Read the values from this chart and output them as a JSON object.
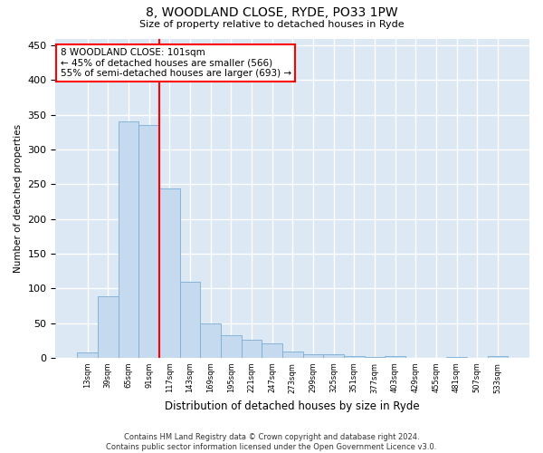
{
  "title1": "8, WOODLAND CLOSE, RYDE, PO33 1PW",
  "title2": "Size of property relative to detached houses in Ryde",
  "xlabel": "Distribution of detached houses by size in Ryde",
  "ylabel": "Number of detached properties",
  "categories": [
    "13sqm",
    "39sqm",
    "65sqm",
    "91sqm",
    "117sqm",
    "143sqm",
    "169sqm",
    "195sqm",
    "221sqm",
    "247sqm",
    "273sqm",
    "299sqm",
    "325sqm",
    "351sqm",
    "377sqm",
    "403sqm",
    "429sqm",
    "455sqm",
    "481sqm",
    "507sqm",
    "533sqm"
  ],
  "values": [
    7,
    88,
    340,
    335,
    244,
    110,
    49,
    32,
    26,
    20,
    9,
    5,
    5,
    3,
    1,
    3,
    0,
    0,
    1,
    0,
    3
  ],
  "bar_color": "#c5d9ef",
  "bar_edge_color": "#7aadd4",
  "vline_x_index": 3.5,
  "vline_color": "red",
  "annotation_text": "8 WOODLAND CLOSE: 101sqm\n← 45% of detached houses are smaller (566)\n55% of semi-detached houses are larger (693) →",
  "annotation_box_color": "white",
  "annotation_box_edge": "red",
  "ylim": [
    0,
    460
  ],
  "yticks": [
    0,
    50,
    100,
    150,
    200,
    250,
    300,
    350,
    400,
    450
  ],
  "bg_color": "#dde8f5",
  "footnote": "Contains HM Land Registry data © Crown copyright and database right 2024.\nContains public sector information licensed under the Open Government Licence v3.0."
}
